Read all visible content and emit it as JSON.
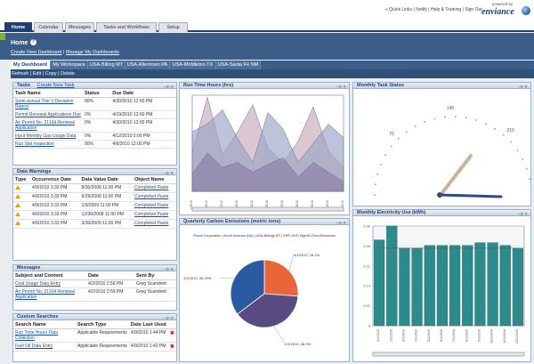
{
  "toplinks": "« Quick Links | Notify | Help & Training | Sign Out",
  "brand": {
    "powered": "powered by",
    "name": "enviance"
  },
  "nav": {
    "tabs": [
      "Home",
      "Calendar",
      "Messages",
      "Tasks and Workflows",
      "Setup"
    ]
  },
  "page": {
    "title": "Home",
    "help": "?",
    "link_create": "Create New Dashboard",
    "link_manage": "Manage My Dashboards"
  },
  "dash_tabs": [
    "My Dashboard",
    "My Workspace",
    "USA-Billing MT",
    "USA-Allentown PA",
    "USA-Middleton TX",
    "USA-Santa Fe NM"
  ],
  "actions": {
    "refresh": "Refresh",
    "edit": "Edit",
    "copy": "Copy",
    "delete": "Delete"
  },
  "colors": {
    "nav": "#1d3f74",
    "band": "#3b5d87",
    "panel_border": "#9fb0c6",
    "pie_blue": "#2c5aa0",
    "pie_orange": "#e8663a",
    "pie_purple": "#5a4a82",
    "bar_teal": "#2e8b8b"
  },
  "tasks": {
    "title": "Tasks",
    "add": "Create New Task",
    "headers": [
      "Task Name",
      "Status",
      "Due Date"
    ],
    "rows": [
      {
        "name": "Semi-annual Title V Deviation Report",
        "status": "80%",
        "due": "4/30/2010 12:00 PM"
      },
      {
        "name": "Permit Renewal Applications Due",
        "status": "0%",
        "due": "4/19/2010 12:00 PM"
      },
      {
        "name": "Air Permit No. 21104 Renewal Application",
        "status": "0%",
        "due": "4/30/2010 12:00 PM"
      },
      {
        "name": "Input Monthly Gas Usage Data",
        "status": "0%",
        "due": "4/12/2010 5:00 PM"
      },
      {
        "name": "Run Stat Inspection",
        "status": "90%",
        "due": "4/9/2010 12:00 PM"
      }
    ]
  },
  "warnings": {
    "title": "Data Warnings",
    "headers": [
      "Type",
      "Occurrence Date",
      "Data Value Date",
      "Object Name"
    ],
    "rows": [
      {
        "occ": "4/9/2010 3:33 PM",
        "val": "8/30/2008 11:00 PM",
        "obj": "Completed Paste"
      },
      {
        "occ": "4/9/2010 3:33 PM",
        "val": "6/29/2008 11:00 PM",
        "obj": "Completed Paste"
      },
      {
        "occ": "4/9/2010 3:33 PM",
        "val": "1/9/2009 11:00 PM",
        "obj": "Completed Paste"
      },
      {
        "occ": "4/9/2010 3:33 PM",
        "val": "12/30/2008 11:00 PM",
        "obj": "Completed Paste"
      },
      {
        "occ": "4/9/2010 3:33 PM",
        "val": "3/30/2009 11:00 PM",
        "obj": "Completed Paste"
      }
    ]
  },
  "messages": {
    "title": "Messages",
    "headers": [
      "Subject and Content",
      "Date",
      "Sent By"
    ],
    "rows": [
      {
        "subject": "Coal Usage Data Entry",
        "date": "4/2/2010 2:59 PM",
        "by": "Greg Scandrett"
      },
      {
        "subject": "Air Permit No. 21104 Renewal Application",
        "date": "4/2/2010 2:59 PM",
        "by": "Greg Scandrett"
      }
    ]
  },
  "searches": {
    "title": "Custom Searches",
    "headers": [
      "Search Name",
      "Search Type",
      "Date Last Used"
    ],
    "rows": [
      {
        "name": "Run Time Hours Data Collection",
        "type": "Applicable Requirements",
        "date": "4/9/2010 1:44 PM"
      },
      {
        "name": "Fuel Oil Data Entry",
        "type": "Applicable Requirements",
        "date": "4/9/2010 1:42 PM"
      }
    ]
  },
  "charts": {
    "runtime_title": "Run Time Hours (hrs)",
    "status_title": "Monthly Task Status",
    "carbon_title": "Quarterly Carbon Emissions (metric tons)",
    "electric_title": "Monthly Electricity Use (kWh)"
  },
  "chart_data": [
    {
      "type": "area",
      "title": "Run Time Hours (hrs)",
      "categories": [
        "1/2010",
        "2/2010",
        "3/2010",
        "4/2010",
        "5/2010",
        "6/2010",
        "7/2010",
        "8/2010",
        "9/2010",
        "10/2010",
        "11/2010"
      ],
      "series": [
        {
          "name": "Series 1",
          "values": [
            400,
            980,
            380,
            620,
            900,
            450,
            300,
            520,
            880,
            420,
            250
          ]
        },
        {
          "name": "Series 2",
          "values": [
            620,
            700,
            850,
            550,
            300,
            820,
            650,
            300,
            500,
            700,
            560
          ]
        },
        {
          "name": "Series 3",
          "values": [
            180,
            400,
            250,
            300,
            200,
            280,
            350,
            150,
            300,
            200,
            100
          ]
        }
      ],
      "ylim": [
        0,
        1000
      ]
    },
    {
      "type": "gauge",
      "title": "Monthly Task Status",
      "tick_labels": [
        "70",
        "140",
        "210",
        "280"
      ],
      "range": [
        0,
        280
      ]
    },
    {
      "type": "pie",
      "title": "Quarterly Carbon Emissions (metric tons)",
      "subtitle": "Pecos Corporation | North America (NA) | USA-Billings MT | ERP-GHG MgmtCO2eq Emissions",
      "slices": [
        {
          "label": "3/1/2010, 26.2%",
          "value": 26.2
        },
        {
          "label": "2/1/2010, 38.5%",
          "value": 38.5
        },
        {
          "label": "1/1/2010, 35.29%",
          "value": 35.29
        }
      ]
    },
    {
      "type": "bar",
      "title": "Monthly Electricity Use (kWh)",
      "categories": [
        "1/1/2010",
        "2/1/2010",
        "3/1/2010",
        "4/1/2010",
        "5/1/2010",
        "6/1/2010",
        "7/1/2010",
        "8/1/2010",
        "9/1/2010",
        "10/1/2010",
        "11/1/2010",
        "12/1/2010"
      ],
      "values": [
        0.31,
        0.36,
        0.28,
        0.28,
        0.29,
        0.29,
        0.29,
        0.29,
        0.3,
        0.3,
        0.29,
        0.28
      ],
      "ylim": [
        0,
        0.36
      ],
      "y_ticks": [
        "0",
        "0.07",
        "0.14",
        "0.21",
        "0.28",
        "0.36"
      ]
    }
  ]
}
